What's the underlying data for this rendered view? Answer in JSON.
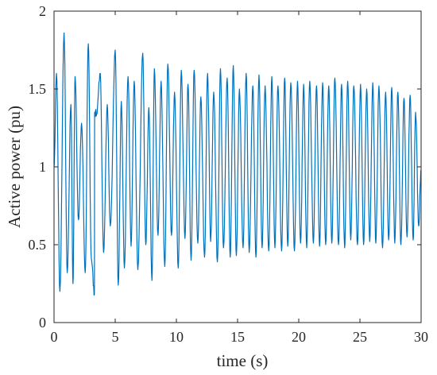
{
  "chart_data": {
    "type": "line",
    "xlabel": "time (s)",
    "ylabel": "Active power (pu)",
    "xlim": [
      0,
      30
    ],
    "ylim": [
      0,
      2
    ],
    "xticks": [
      0,
      5,
      10,
      15,
      20,
      25,
      30
    ],
    "yticks": [
      0,
      0.5,
      1,
      1.5,
      2
    ],
    "grid": false,
    "box": true,
    "series": [
      {
        "color": "#0072BD",
        "peaks": [
          [
            0.2,
            1.6
          ],
          [
            0.82,
            1.86
          ],
          [
            1.38,
            1.4
          ],
          [
            1.72,
            1.58
          ],
          [
            2.25,
            1.28
          ],
          [
            2.8,
            1.79
          ],
          [
            3.32,
            1.35
          ],
          [
            3.48,
            1.34
          ],
          [
            3.78,
            1.6
          ],
          [
            4.35,
            1.4
          ],
          [
            5.0,
            1.75
          ],
          [
            5.5,
            1.42
          ],
          [
            6.05,
            1.58
          ],
          [
            6.55,
            1.55
          ],
          [
            7.25,
            1.73
          ],
          [
            7.75,
            1.38
          ],
          [
            8.2,
            1.63
          ],
          [
            8.75,
            1.55
          ],
          [
            9.3,
            1.66
          ],
          [
            9.85,
            1.48
          ],
          [
            10.4,
            1.62
          ],
          [
            10.95,
            1.53
          ],
          [
            11.45,
            1.62
          ],
          [
            12.0,
            1.45
          ],
          [
            12.55,
            1.6
          ],
          [
            13.05,
            1.48
          ],
          [
            13.6,
            1.63
          ],
          [
            14.15,
            1.57
          ],
          [
            14.65,
            1.65
          ],
          [
            15.15,
            1.5
          ],
          [
            15.7,
            1.6
          ],
          [
            16.25,
            1.52
          ],
          [
            16.75,
            1.59
          ],
          [
            17.25,
            1.52
          ],
          [
            17.8,
            1.58
          ],
          [
            18.3,
            1.52
          ],
          [
            18.85,
            1.57
          ],
          [
            19.35,
            1.54
          ],
          [
            19.9,
            1.55
          ],
          [
            20.4,
            1.53
          ],
          [
            20.9,
            1.55
          ],
          [
            21.45,
            1.52
          ],
          [
            21.95,
            1.54
          ],
          [
            22.45,
            1.52
          ],
          [
            22.95,
            1.57
          ],
          [
            23.5,
            1.53
          ],
          [
            24.0,
            1.55
          ],
          [
            24.5,
            1.52
          ],
          [
            25.05,
            1.53
          ],
          [
            25.55,
            1.5
          ],
          [
            26.05,
            1.54
          ],
          [
            26.55,
            1.52
          ],
          [
            27.1,
            1.48
          ],
          [
            27.6,
            1.51
          ],
          [
            28.1,
            1.48
          ],
          [
            28.6,
            1.44
          ],
          [
            29.1,
            1.46
          ],
          [
            29.55,
            1.35
          ]
        ],
        "troughs": [
          [
            0.48,
            0.2
          ],
          [
            1.08,
            0.32
          ],
          [
            1.55,
            0.25
          ],
          [
            2.0,
            0.66
          ],
          [
            2.55,
            0.32
          ],
          [
            3.05,
            0.41
          ],
          [
            3.3,
            0.18
          ],
          [
            4.05,
            0.45
          ],
          [
            4.6,
            0.62
          ],
          [
            5.25,
            0.24
          ],
          [
            5.75,
            0.35
          ],
          [
            6.3,
            0.49
          ],
          [
            6.85,
            0.34
          ],
          [
            7.5,
            0.5
          ],
          [
            8.0,
            0.27
          ],
          [
            8.5,
            0.56
          ],
          [
            9.05,
            0.36
          ],
          [
            9.6,
            0.56
          ],
          [
            10.15,
            0.35
          ],
          [
            10.7,
            0.54
          ],
          [
            11.2,
            0.4
          ],
          [
            11.75,
            0.51
          ],
          [
            12.3,
            0.42
          ],
          [
            12.8,
            0.52
          ],
          [
            13.35,
            0.39
          ],
          [
            13.85,
            0.48
          ],
          [
            14.4,
            0.42
          ],
          [
            14.9,
            0.43
          ],
          [
            15.45,
            0.48
          ],
          [
            15.95,
            0.45
          ],
          [
            16.5,
            0.42
          ],
          [
            17.0,
            0.48
          ],
          [
            17.55,
            0.46
          ],
          [
            18.05,
            0.48
          ],
          [
            18.6,
            0.46
          ],
          [
            19.1,
            0.49
          ],
          [
            19.65,
            0.46
          ],
          [
            20.15,
            0.51
          ],
          [
            20.65,
            0.48
          ],
          [
            21.2,
            0.51
          ],
          [
            21.7,
            0.49
          ],
          [
            22.2,
            0.5
          ],
          [
            22.7,
            0.51
          ],
          [
            23.25,
            0.5
          ],
          [
            23.75,
            0.48
          ],
          [
            24.25,
            0.53
          ],
          [
            24.8,
            0.5
          ],
          [
            25.3,
            0.5
          ],
          [
            25.8,
            0.52
          ],
          [
            26.3,
            0.51
          ],
          [
            26.85,
            0.48
          ],
          [
            27.35,
            0.53
          ],
          [
            27.85,
            0.51
          ],
          [
            28.35,
            0.5
          ],
          [
            28.85,
            0.55
          ],
          [
            29.35,
            0.53
          ],
          [
            29.8,
            0.62
          ]
        ],
        "start": [
          0,
          1.0
        ],
        "end": [
          30.0,
          0.98
        ]
      }
    ]
  }
}
